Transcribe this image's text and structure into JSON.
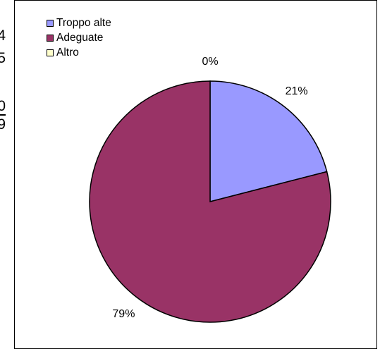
{
  "background_fragments": [
    "4",
    "5",
    "0",
    "9"
  ],
  "chart_data": {
    "type": "pie",
    "title": "",
    "categories": [
      "Troppo alte",
      "Adeguate",
      "Altro"
    ],
    "values": [
      21,
      79,
      0
    ],
    "data_labels": [
      "21%",
      "79%",
      "0%"
    ],
    "colors": [
      "#9999FF",
      "#993366",
      "#FFFFCC"
    ],
    "legend_position": "top-left",
    "start_angle_deg": 0,
    "direction": "clockwise"
  }
}
